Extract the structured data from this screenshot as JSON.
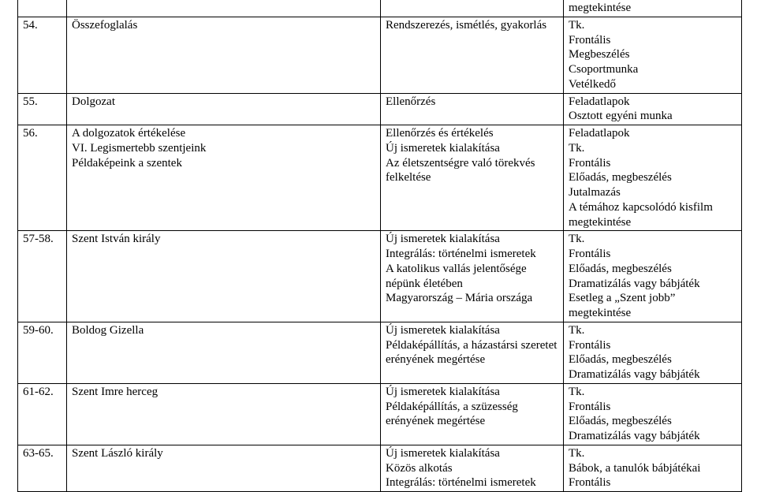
{
  "rows": [
    {
      "c1": "",
      "c2": "",
      "c3": "",
      "c4": "megtekintése",
      "noTop": true
    },
    {
      "c1": "54.",
      "c2": "Összefoglalás",
      "c3": "Rendszerezés, ismétlés, gyakorlás",
      "c4": "Tk.\nFrontális\nMegbeszélés\nCsoportmunka\nVetélkedő"
    },
    {
      "c1": "55.",
      "c2": "Dolgozat",
      "c3": "Ellenőrzés",
      "c4": "Feladatlapok\nOsztott egyéni munka"
    },
    {
      "c1": "56.",
      "c2": "A dolgozatok értékelése\nVI. Legismertebb szentjeink\nPéldaképeink a szentek",
      "c3": "Ellenőrzés és értékelés\nÚj ismeretek kialakítása\nAz életszentségre való törekvés felkeltése",
      "c4": "Feladatlapok\nTk.\nFrontális\nElőadás, megbeszélés\nJutalmazás\nA témához kapcsolódó kisfilm megtekintése"
    },
    {
      "c1": "57-58.",
      "c2": "Szent István király",
      "c3": "Új ismeretek kialakítása\nIntegrálás: történelmi ismeretek\nA katolikus vallás jelentősége népünk életében\nMagyarország – Mária országa",
      "c4": "Tk.\nFrontális\nElőadás, megbeszélés\nDramatizálás vagy bábjáték\nEsetleg a „Szent jobb” megtekintése"
    },
    {
      "c1": "59-60.",
      "c2": "Boldog Gizella",
      "c3": "Új ismeretek kialakítása\nPéldaképállítás, a házastársi szeretet erényének megértése",
      "c4": "Tk.\nFrontális\nElőadás, megbeszélés\nDramatizálás vagy bábjáték"
    },
    {
      "c1": "61-62.",
      "c2": "Szent Imre herceg",
      "c3": "Új ismeretek kialakítása\nPéldaképállítás, a szüzesség erényének megértése",
      "c4": "Tk.\nFrontális\nElőadás, megbeszélés\nDramatizálás vagy bábjáték"
    },
    {
      "c1": "63-65.",
      "c2": "Szent László király",
      "c3": "Új ismeretek kialakítása\nKözös alkotás\nIntegrálás: történelmi ismeretek",
      "c4": "Tk.\nBábok, a tanulók bábjátékai\nFrontális"
    }
  ]
}
